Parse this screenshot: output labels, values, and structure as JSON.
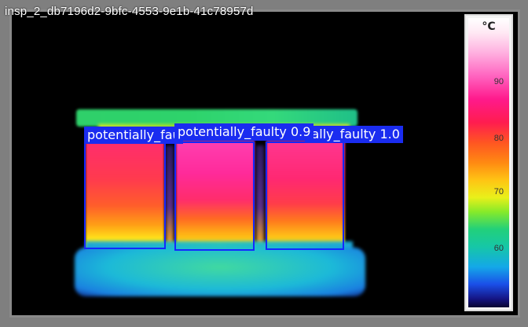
{
  "image_id": "insp_2_db7196d2-9bfc-4553-9e1b-41c78957d",
  "scale": {
    "unit": "°C",
    "ticks": [
      "90",
      "80",
      "70",
      "60"
    ]
  },
  "detections": [
    {
      "label": "potentially_fau",
      "class": "potentially_faulty"
    },
    {
      "label": "potentially_faulty 0.9",
      "class": "potentially_faulty",
      "score": 0.9
    },
    {
      "label": "ially_faulty 1.0",
      "class": "potentially_faulty",
      "score": 1.0
    }
  ],
  "colors": {
    "box": "#1428ff",
    "label_bg": "#1a2cf0",
    "frame": "#7f7f7f"
  }
}
